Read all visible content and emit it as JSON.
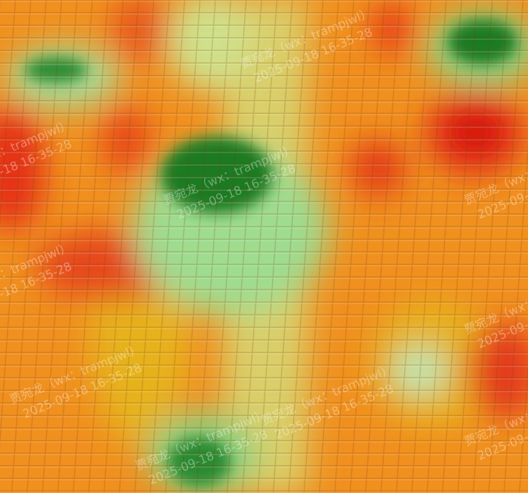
{
  "watermark": {
    "line1": "贾宛龙（wx：trampjwl）",
    "line2": "2025-09-18 16-35-28"
  }
}
